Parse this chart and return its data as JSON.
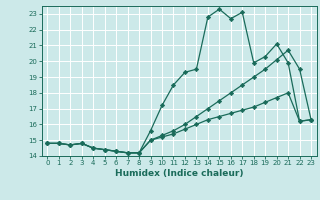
{
  "xlabel": "Humidex (Indice chaleur)",
  "background_color": "#cce9e9",
  "grid_color": "#ffffff",
  "line_color": "#1a6b5a",
  "xlim": [
    -0.5,
    23.5
  ],
  "ylim": [
    14,
    23.5
  ],
  "x_ticks": [
    0,
    1,
    2,
    3,
    4,
    5,
    6,
    7,
    8,
    9,
    10,
    11,
    12,
    13,
    14,
    15,
    16,
    17,
    18,
    19,
    20,
    21,
    22,
    23
  ],
  "y_ticks": [
    14,
    15,
    16,
    17,
    18,
    19,
    20,
    21,
    22,
    23
  ],
  "line1_x": [
    0,
    1,
    2,
    3,
    4,
    5,
    6,
    7,
    8,
    9,
    10,
    11,
    12,
    13,
    14,
    15,
    16,
    17,
    18,
    19,
    20,
    21,
    22,
    23
  ],
  "line1_y": [
    14.8,
    14.8,
    14.7,
    14.8,
    14.5,
    14.4,
    14.3,
    14.2,
    14.2,
    15.6,
    17.2,
    18.5,
    19.3,
    19.5,
    22.8,
    23.3,
    22.7,
    23.1,
    19.9,
    20.3,
    21.1,
    19.9,
    16.2,
    16.3
  ],
  "line2_x": [
    0,
    1,
    2,
    3,
    4,
    5,
    6,
    7,
    8,
    9,
    10,
    11,
    12,
    13,
    14,
    15,
    16,
    17,
    18,
    19,
    20,
    21,
    22,
    23
  ],
  "line2_y": [
    14.8,
    14.8,
    14.7,
    14.8,
    14.5,
    14.4,
    14.3,
    14.2,
    14.2,
    15.0,
    15.2,
    15.4,
    15.7,
    16.0,
    16.3,
    16.5,
    16.7,
    16.9,
    17.1,
    17.4,
    17.7,
    18.0,
    16.2,
    16.3
  ],
  "line3_x": [
    0,
    1,
    2,
    3,
    4,
    5,
    6,
    7,
    8,
    9,
    10,
    11,
    12,
    13,
    14,
    15,
    16,
    17,
    18,
    19,
    20,
    21,
    22,
    23
  ],
  "line3_y": [
    14.8,
    14.8,
    14.7,
    14.8,
    14.5,
    14.4,
    14.3,
    14.2,
    14.2,
    15.0,
    15.3,
    15.6,
    16.0,
    16.5,
    17.0,
    17.5,
    18.0,
    18.5,
    19.0,
    19.5,
    20.1,
    20.7,
    19.5,
    16.3
  ]
}
